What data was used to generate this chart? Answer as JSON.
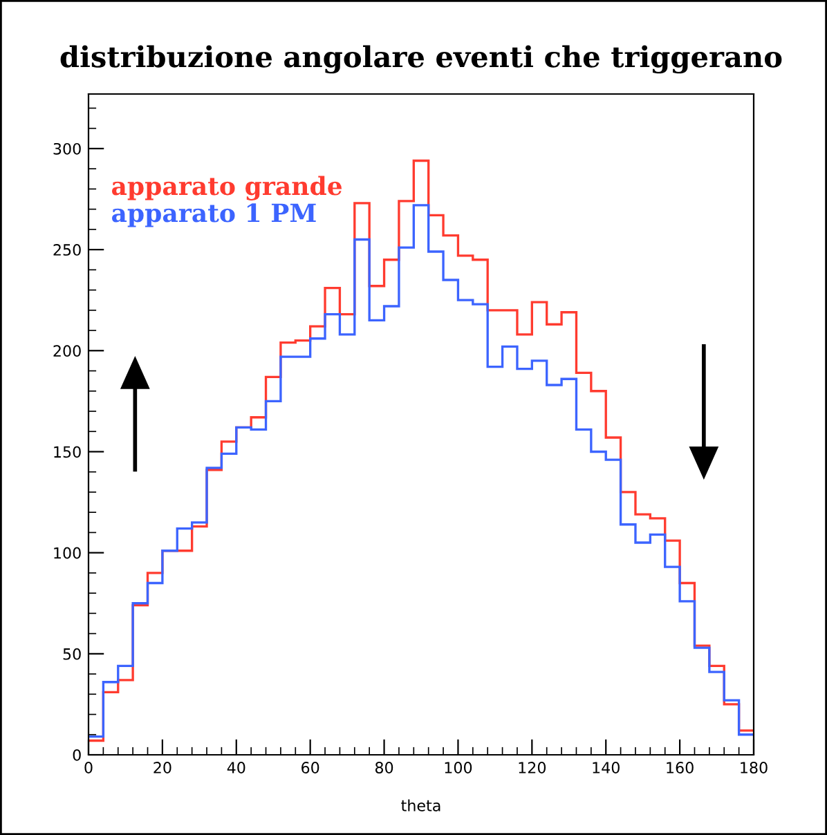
{
  "chart_data": {
    "type": "histogram",
    "title": "distribuzione angolare eventi che triggerano",
    "xlabel": "theta",
    "bins": [
      0,
      4,
      8,
      12,
      16,
      20,
      24,
      28,
      32,
      36,
      40,
      44,
      48,
      52,
      56,
      60,
      64,
      68,
      72,
      76,
      80,
      84,
      88,
      92,
      96,
      100,
      104,
      108,
      112,
      116,
      120,
      124,
      128,
      132,
      136,
      140,
      144,
      148,
      152,
      156,
      160,
      164,
      168,
      172,
      176,
      180
    ],
    "series": [
      {
        "name": "apparato grande",
        "color": "#ff3b2f",
        "values": [
          7,
          31,
          37,
          74,
          90,
          101,
          101,
          113,
          141,
          155,
          162,
          167,
          187,
          204,
          205,
          212,
          231,
          218,
          273,
          232,
          245,
          274,
          294,
          267,
          257,
          247,
          245,
          220,
          220,
          208,
          224,
          213,
          219,
          189,
          180,
          157,
          130,
          119,
          117,
          106,
          85,
          54,
          44,
          25,
          12
        ]
      },
      {
        "name": "apparato 1 PM",
        "color": "#3c64ff",
        "values": [
          9,
          36,
          44,
          75,
          85,
          101,
          112,
          115,
          142,
          149,
          162,
          161,
          175,
          197,
          197,
          206,
          218,
          208,
          255,
          215,
          222,
          251,
          272,
          249,
          235,
          225,
          223,
          192,
          202,
          191,
          195,
          183,
          186,
          161,
          150,
          146,
          114,
          105,
          109,
          93,
          76,
          53,
          41,
          27,
          10
        ]
      }
    ],
    "xlim": [
      0,
      180
    ],
    "xticks": [
      0,
      20,
      40,
      60,
      80,
      100,
      120,
      140,
      160,
      180
    ],
    "ylim": [
      0,
      327
    ],
    "yticks": [
      0,
      50,
      100,
      150,
      200,
      250,
      300
    ],
    "grid": false,
    "legend": "top left"
  }
}
